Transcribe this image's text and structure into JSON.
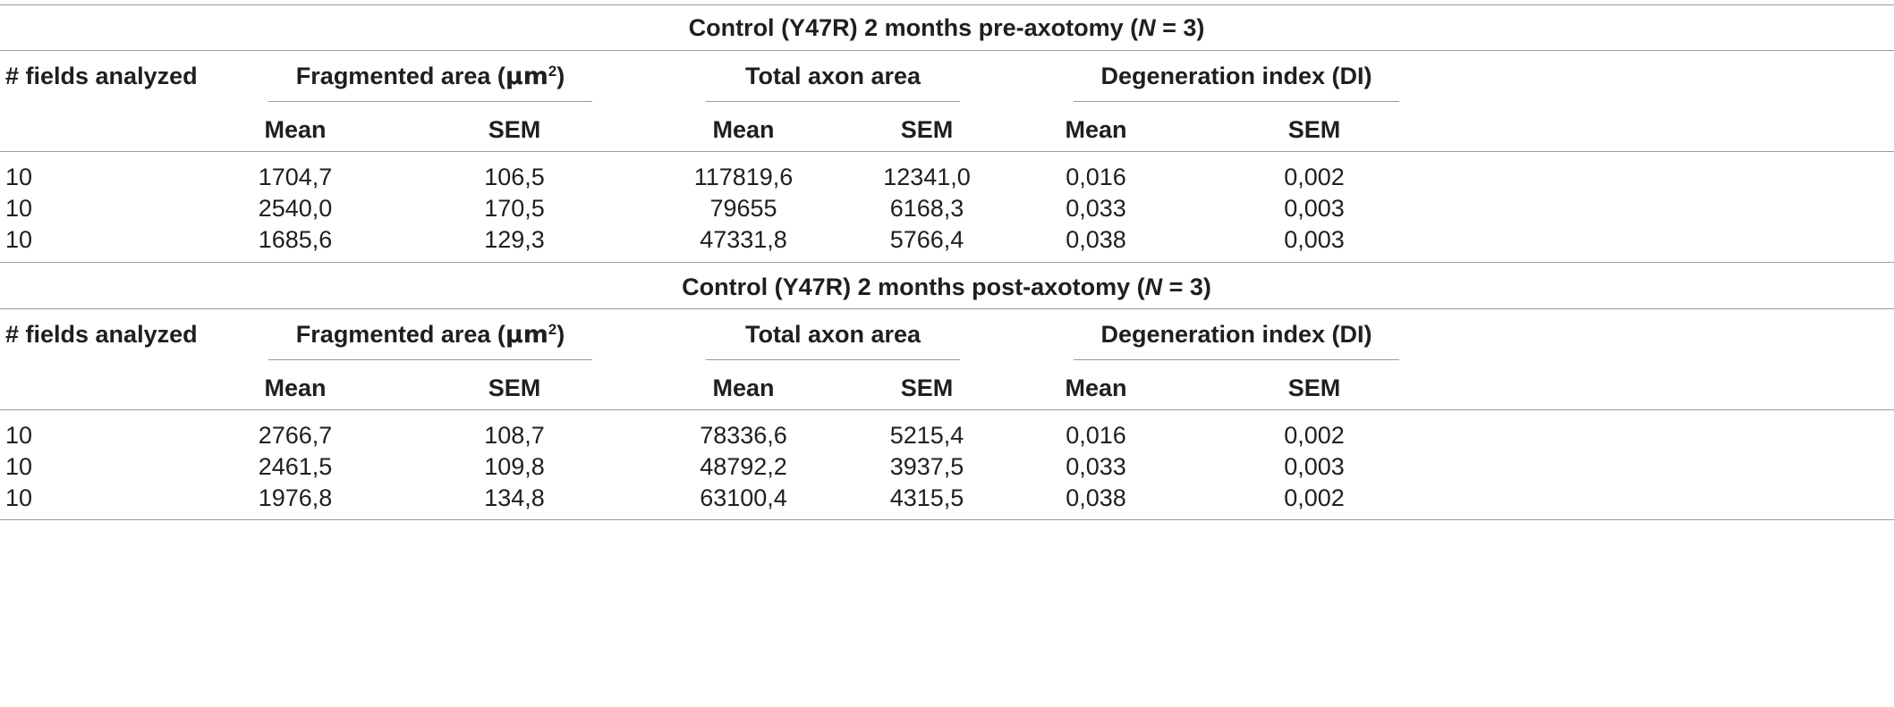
{
  "table": {
    "sections": [
      {
        "title_pre": "Control (Y47R) 2 months pre-axotomy (",
        "title_n": "N",
        "title_post": " = 3)",
        "headers": {
          "fields": "# fields analyzed",
          "fragmented_pre": "Fragmented area (",
          "fragmented_unit": "μm",
          "fragmented_sup": "2",
          "fragmented_post": ")",
          "total": "Total axon area",
          "degeneration": "Degeneration index (DI)"
        },
        "subheaders": [
          "Mean",
          "SEM",
          "Mean",
          "SEM",
          "Mean",
          "SEM"
        ],
        "rows": [
          [
            "10",
            "1704,7",
            "106,5",
            "117819,6",
            "12341,0",
            "0,016",
            "0,002"
          ],
          [
            "10",
            "2540,0",
            "170,5",
            "79655",
            "6168,3",
            "0,033",
            "0,003"
          ],
          [
            "10",
            "1685,6",
            "129,3",
            "47331,8",
            "5766,4",
            "0,038",
            "0,003"
          ]
        ]
      },
      {
        "title_pre": "Control (Y47R) 2 months post-axotomy (",
        "title_n": "N",
        "title_post": " = 3)",
        "headers": {
          "fields": "# fields analyzed",
          "fragmented_pre": "Fragmented area (",
          "fragmented_unit": "μm",
          "fragmented_sup": "2",
          "fragmented_post": ")",
          "total": "Total axon area",
          "degeneration": "Degeneration index (DI)"
        },
        "subheaders": [
          "Mean",
          "SEM",
          "Mean",
          "SEM",
          "Mean",
          "SEM"
        ],
        "rows": [
          [
            "10",
            "2766,7",
            "108,7",
            "78336,6",
            "5215,4",
            "0,016",
            "0,002"
          ],
          [
            "10",
            "2461,5",
            "109,8",
            "48792,2",
            "3937,5",
            "0,033",
            "0,003"
          ],
          [
            "10",
            "1976,8",
            "134,8",
            "63100,4",
            "4315,5",
            "0,038",
            "0,002"
          ]
        ]
      }
    ]
  }
}
